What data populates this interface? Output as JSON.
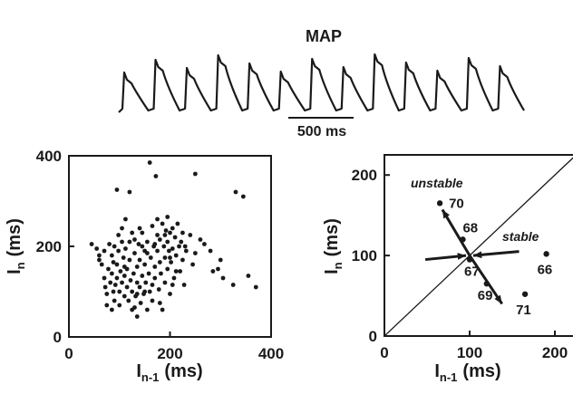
{
  "chart_data": [
    {
      "type": "line",
      "title": "MAP",
      "scale_bar_label": "500 ms",
      "beat_count": 13
    },
    {
      "type": "scatter",
      "xlabel_main": "I",
      "xlabel_sub": "n-1",
      "xlabel_unit": "(ms)",
      "ylabel_main": "I",
      "ylabel_sub": "n",
      "ylabel_unit": "(ms)",
      "xlim": [
        0,
        400
      ],
      "ylim": [
        0,
        400
      ],
      "x_ticks": [
        "0",
        "200",
        "400"
      ],
      "y_ticks": [
        "0",
        "200",
        "400"
      ],
      "points": [
        [
          45,
          205
        ],
        [
          55,
          195
        ],
        [
          60,
          170
        ],
        [
          65,
          160
        ],
        [
          70,
          190
        ],
        [
          70,
          130
        ],
        [
          72,
          110
        ],
        [
          75,
          95
        ],
        [
          75,
          70
        ],
        [
          78,
          150
        ],
        [
          80,
          205
        ],
        [
          82,
          120
        ],
        [
          85,
          140
        ],
        [
          85,
          180
        ],
        [
          88,
          100
        ],
        [
          90,
          200
        ],
        [
          90,
          80
        ],
        [
          92,
          115
        ],
        [
          95,
          160
        ],
        [
          95,
          130
        ],
        [
          95,
          325
        ],
        [
          98,
          190
        ],
        [
          100,
          100
        ],
        [
          100,
          70
        ],
        [
          102,
          145
        ],
        [
          105,
          210
        ],
        [
          105,
          120
        ],
        [
          108,
          175
        ],
        [
          110,
          90
        ],
        [
          110,
          135
        ],
        [
          112,
          260
        ],
        [
          112,
          195
        ],
        [
          115,
          150
        ],
        [
          115,
          110
        ],
        [
          118,
          80
        ],
        [
          120,
          170
        ],
        [
          120,
          320
        ],
        [
          122,
          125
        ],
        [
          125,
          100
        ],
        [
          125,
          60
        ],
        [
          128,
          140
        ],
        [
          130,
          185
        ],
        [
          130,
          215
        ],
        [
          132,
          90
        ],
        [
          135,
          155
        ],
        [
          135,
          120
        ],
        [
          135,
          45
        ],
        [
          138,
          205
        ],
        [
          140,
          110
        ],
        [
          140,
          170
        ],
        [
          142,
          75
        ],
        [
          145,
          135
        ],
        [
          145,
          230
        ],
        [
          148,
          95
        ],
        [
          150,
          190
        ],
        [
          150,
          160
        ],
        [
          152,
          120
        ],
        [
          155,
          60
        ],
        [
          155,
          210
        ],
        [
          158,
          140
        ],
        [
          160,
          100
        ],
        [
          160,
          385
        ],
        [
          162,
          175
        ],
        [
          165,
          245
        ],
        [
          165,
          80
        ],
        [
          168,
          200
        ],
        [
          170,
          130
        ],
        [
          170,
          155
        ],
        [
          172,
          355
        ],
        [
          175,
          225
        ],
        [
          175,
          190
        ],
        [
          178,
          105
        ],
        [
          180,
          165
        ],
        [
          180,
          215
        ],
        [
          182,
          140
        ],
        [
          185,
          250
        ],
        [
          185,
          60
        ],
        [
          188,
          200
        ],
        [
          190,
          120
        ],
        [
          190,
          175
        ],
        [
          192,
          235
        ],
        [
          195,
          150
        ],
        [
          195,
          210
        ],
        [
          198,
          190
        ],
        [
          200,
          95
        ],
        [
          200,
          230
        ],
        [
          202,
          165
        ],
        [
          205,
          240
        ],
        [
          205,
          195
        ],
        [
          208,
          130
        ],
        [
          210,
          220
        ],
        [
          212,
          180
        ],
        [
          215,
          250
        ],
        [
          218,
          200
        ],
        [
          220,
          145
        ],
        [
          222,
          210
        ],
        [
          225,
          170
        ],
        [
          228,
          115
        ],
        [
          230,
          200
        ],
        [
          232,
          190
        ],
        [
          240,
          225
        ],
        [
          245,
          160
        ],
        [
          250,
          185
        ],
        [
          260,
          215
        ],
        [
          268,
          205
        ],
        [
          280,
          190
        ],
        [
          285,
          145
        ],
        [
          295,
          150
        ],
        [
          300,
          170
        ],
        [
          305,
          130
        ],
        [
          325,
          115
        ],
        [
          330,
          320
        ],
        [
          345,
          310
        ],
        [
          355,
          135
        ],
        [
          370,
          110
        ],
        [
          250,
          360
        ],
        [
          60,
          180
        ],
        [
          85,
          60
        ],
        [
          105,
          240
        ],
        [
          140,
          240
        ],
        [
          165,
          115
        ],
        [
          195,
          265
        ],
        [
          212,
          145
        ],
        [
          120,
          210
        ],
        [
          150,
          100
        ],
        [
          98,
          225
        ],
        [
          180,
          75
        ],
        [
          130,
          65
        ],
        [
          155,
          185
        ],
        [
          200,
          175
        ],
        [
          175,
          260
        ],
        [
          145,
          200
        ],
        [
          110,
          155
        ],
        [
          125,
          230
        ],
        [
          190,
          225
        ],
        [
          205,
          115
        ],
        [
          170,
          205
        ],
        [
          88,
          165
        ],
        [
          135,
          95
        ],
        [
          225,
          230
        ]
      ]
    },
    {
      "type": "scatter",
      "xlabel_main": "I",
      "xlabel_sub": "n-1",
      "xlabel_unit": "(ms)",
      "ylabel_main": "I",
      "ylabel_sub": "n",
      "ylabel_unit": "(ms)",
      "xlim": [
        0,
        225
      ],
      "ylim": [
        0,
        225
      ],
      "x_ticks": [
        "0",
        "100",
        "200"
      ],
      "y_ticks": [
        "0",
        "100",
        "200"
      ],
      "identity_line": true,
      "points": [
        {
          "label": "70",
          "x": 65,
          "y": 165
        },
        {
          "label": "68",
          "x": 92,
          "y": 120
        },
        {
          "label": "67",
          "x": 100,
          "y": 95
        },
        {
          "label": "69",
          "x": 120,
          "y": 65
        },
        {
          "label": "71",
          "x": 165,
          "y": 52
        },
        {
          "label": "66",
          "x": 190,
          "y": 102
        }
      ],
      "annotations": [
        {
          "text": "unstable",
          "direction": "vector pointing up-left and down-right through (100,100)"
        },
        {
          "text": "stable",
          "direction": "vectors pointing inward along a shallow line through (100,100)"
        }
      ]
    }
  ]
}
